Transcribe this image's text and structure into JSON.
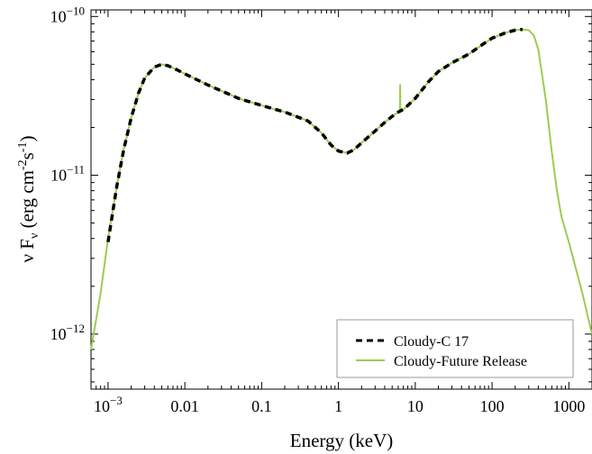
{
  "chart_data": {
    "type": "line",
    "title": "",
    "xlabel": "Energy (keV)",
    "ylabel_parts": [
      "ν F",
      "ν",
      " (erg cm",
      "-2",
      "s",
      "-1",
      ")"
    ],
    "xscale": "log",
    "yscale": "log",
    "xlim": [
      0.0006,
      2000
    ],
    "ylim": [
      4.5e-13,
      1.1e-10
    ],
    "grid": false,
    "legend_position": "bottom-right",
    "x_ticks": [
      {
        "value": 0.001,
        "label": "10",
        "sup": "−3"
      },
      {
        "value": 0.01,
        "label": "0.01",
        "sup": ""
      },
      {
        "value": 0.1,
        "label": "0.1",
        "sup": ""
      },
      {
        "value": 1,
        "label": "1",
        "sup": ""
      },
      {
        "value": 10,
        "label": "10",
        "sup": ""
      },
      {
        "value": 100,
        "label": "100",
        "sup": ""
      },
      {
        "value": 1000,
        "label": "1000",
        "sup": ""
      }
    ],
    "y_ticks": [
      {
        "value": 1e-12,
        "label": "10",
        "sup": "−12"
      },
      {
        "value": 1e-11,
        "label": "10",
        "sup": "−11"
      },
      {
        "value": 1e-10,
        "label": "10",
        "sup": "−10"
      }
    ],
    "series": [
      {
        "name": "Cloudy-Future Release",
        "color": "#9acd50",
        "style": "solid",
        "x": [
          0.0006,
          0.0008,
          0.001,
          0.0013,
          0.0016,
          0.002,
          0.0025,
          0.003,
          0.004,
          0.005,
          0.006,
          0.008,
          0.01,
          0.02,
          0.05,
          0.1,
          0.2,
          0.4,
          0.6,
          0.8,
          1.0,
          1.3,
          1.6,
          2.0,
          3.0,
          4.0,
          5.0,
          6.0,
          6.3,
          6.35,
          6.4,
          6.45,
          6.5,
          7.0,
          8.0,
          10,
          15,
          20,
          30,
          50,
          80,
          100,
          150,
          200,
          250,
          300,
          350,
          400,
          500,
          600,
          700,
          800,
          1000,
          1500,
          2000
        ],
        "y": [
          8e-13,
          1.8e-12,
          4e-12,
          8.5e-12,
          1.45e-11,
          2.3e-11,
          3.3e-11,
          4.1e-11,
          4.8e-11,
          5e-11,
          4.9e-11,
          4.6e-11,
          4.35e-11,
          3.7e-11,
          3.05e-11,
          2.75e-11,
          2.5e-11,
          2.2e-11,
          1.85e-11,
          1.55e-11,
          1.42e-11,
          1.38e-11,
          1.45e-11,
          1.6e-11,
          1.9e-11,
          2.15e-11,
          2.35e-11,
          2.5e-11,
          2.55e-11,
          3.7e-11,
          2.6e-11,
          2.55e-11,
          2.55e-11,
          2.6e-11,
          2.75e-11,
          3.05e-11,
          3.9e-11,
          4.5e-11,
          5.1e-11,
          5.8e-11,
          6.8e-11,
          7.3e-11,
          7.9e-11,
          8.2e-11,
          8.3e-11,
          8.2e-11,
          7.6e-11,
          6.2e-11,
          3e-11,
          1.4e-11,
          8e-12,
          5.5e-12,
          3.8e-12,
          1.8e-12,
          1e-12
        ]
      },
      {
        "name": "Cloudy-C 17",
        "color": "#000000",
        "style": "dashed",
        "x": [
          0.001,
          0.0013,
          0.0016,
          0.002,
          0.0025,
          0.003,
          0.004,
          0.005,
          0.006,
          0.008,
          0.01,
          0.02,
          0.05,
          0.1,
          0.2,
          0.4,
          0.6,
          0.8,
          1.0,
          1.3,
          1.6,
          2.0,
          3.0,
          4.0,
          5.0,
          6.0,
          7.0,
          8.0,
          10,
          15,
          20,
          30,
          50,
          80,
          100,
          150,
          200,
          250
        ],
        "y": [
          3.8e-12,
          8.5e-12,
          1.45e-11,
          2.3e-11,
          3.3e-11,
          4.1e-11,
          4.8e-11,
          5e-11,
          4.9e-11,
          4.6e-11,
          4.35e-11,
          3.7e-11,
          3.05e-11,
          2.75e-11,
          2.5e-11,
          2.2e-11,
          1.85e-11,
          1.55e-11,
          1.42e-11,
          1.38e-11,
          1.45e-11,
          1.6e-11,
          1.9e-11,
          2.15e-11,
          2.35e-11,
          2.5e-11,
          2.6e-11,
          2.75e-11,
          3.05e-11,
          3.9e-11,
          4.5e-11,
          5.1e-11,
          5.8e-11,
          6.8e-11,
          7.3e-11,
          7.9e-11,
          8.2e-11,
          8.3e-11
        ]
      }
    ],
    "legend": [
      {
        "label": "Cloudy-C 17",
        "color": "#000000",
        "style": "dashed"
      },
      {
        "label": "Cloudy-Future Release",
        "color": "#9acd50",
        "style": "solid"
      }
    ]
  }
}
